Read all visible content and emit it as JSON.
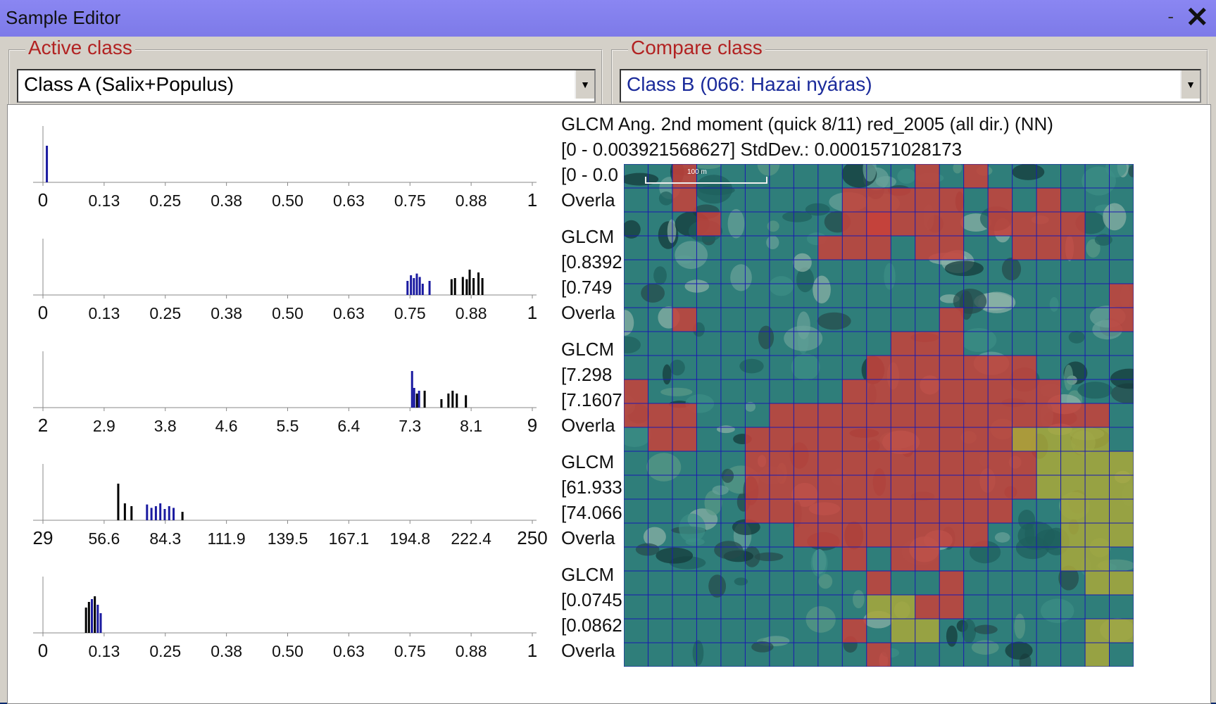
{
  "window": {
    "title": "Sample Editor",
    "minimize": "-",
    "close": "✕"
  },
  "active_class": {
    "legend": "Active class",
    "value": "Class A (Salix+Populus)",
    "color": "#000000"
  },
  "compare_class": {
    "legend": "Compare class",
    "value": "Class B (066: Hazai nyáras)",
    "color": "#1a2a9a"
  },
  "histograms": [
    {
      "ticks": [
        "0",
        "0.13",
        "0.25",
        "0.38",
        "0.50",
        "0.63",
        "0.75",
        "0.88",
        "1"
      ],
      "range": [
        0,
        1
      ],
      "bars": [
        {
          "x": 0.008,
          "h": 0.65,
          "c": "blue"
        }
      ]
    },
    {
      "ticks": [
        "0",
        "0.13",
        "0.25",
        "0.38",
        "0.50",
        "0.63",
        "0.75",
        "0.88",
        "1"
      ],
      "range": [
        0,
        1
      ],
      "bars": [
        {
          "x": 0.745,
          "h": 0.25,
          "c": "blue"
        },
        {
          "x": 0.752,
          "h": 0.35,
          "c": "blue"
        },
        {
          "x": 0.758,
          "h": 0.3,
          "c": "blue"
        },
        {
          "x": 0.764,
          "h": 0.38,
          "c": "blue"
        },
        {
          "x": 0.77,
          "h": 0.32,
          "c": "blue"
        },
        {
          "x": 0.776,
          "h": 0.2,
          "c": "blue"
        },
        {
          "x": 0.79,
          "h": 0.25,
          "c": "blue"
        },
        {
          "x": 0.835,
          "h": 0.28,
          "c": "black"
        },
        {
          "x": 0.842,
          "h": 0.3,
          "c": "black"
        },
        {
          "x": 0.858,
          "h": 0.32,
          "c": "black"
        },
        {
          "x": 0.866,
          "h": 0.28,
          "c": "black"
        },
        {
          "x": 0.872,
          "h": 0.45,
          "c": "black"
        },
        {
          "x": 0.88,
          "h": 0.3,
          "c": "black"
        },
        {
          "x": 0.89,
          "h": 0.4,
          "c": "black"
        },
        {
          "x": 0.898,
          "h": 0.3,
          "c": "black"
        }
      ]
    },
    {
      "ticks": [
        "2",
        "2.9",
        "3.8",
        "4.6",
        "5.5",
        "6.4",
        "7.3",
        "8.1",
        "9"
      ],
      "range": [
        2,
        9
      ],
      "bars": [
        {
          "x": 7.28,
          "h": 0.65,
          "c": "blue"
        },
        {
          "x": 7.31,
          "h": 0.35,
          "c": "blue"
        },
        {
          "x": 7.35,
          "h": 0.25,
          "c": "black"
        },
        {
          "x": 7.38,
          "h": 0.3,
          "c": "blue"
        },
        {
          "x": 7.46,
          "h": 0.3,
          "c": "black"
        },
        {
          "x": 7.7,
          "h": 0.15,
          "c": "black"
        },
        {
          "x": 7.8,
          "h": 0.25,
          "c": "black"
        },
        {
          "x": 7.86,
          "h": 0.3,
          "c": "black"
        },
        {
          "x": 7.92,
          "h": 0.25,
          "c": "black"
        },
        {
          "x": 8.05,
          "h": 0.22,
          "c": "black"
        }
      ]
    },
    {
      "ticks": [
        "29",
        "56.6",
        "84.3",
        "111.9",
        "139.5",
        "167.1",
        "194.8",
        "222.4",
        "250"
      ],
      "range": [
        29,
        250
      ],
      "bars": [
        {
          "x": 63,
          "h": 0.65,
          "c": "black"
        },
        {
          "x": 66,
          "h": 0.3,
          "c": "black"
        },
        {
          "x": 69,
          "h": 0.25,
          "c": "black"
        },
        {
          "x": 76,
          "h": 0.28,
          "c": "blue"
        },
        {
          "x": 78,
          "h": 0.22,
          "c": "blue"
        },
        {
          "x": 80,
          "h": 0.25,
          "c": "blue"
        },
        {
          "x": 82,
          "h": 0.3,
          "c": "blue"
        },
        {
          "x": 84,
          "h": 0.2,
          "c": "blue"
        },
        {
          "x": 86,
          "h": 0.25,
          "c": "blue"
        },
        {
          "x": 88,
          "h": 0.22,
          "c": "blue"
        },
        {
          "x": 92,
          "h": 0.15,
          "c": "black"
        }
      ]
    },
    {
      "ticks": [
        "0",
        "0.13",
        "0.25",
        "0.38",
        "0.50",
        "0.63",
        "0.75",
        "0.88",
        "1"
      ],
      "range": [
        0,
        1
      ],
      "bars": [
        {
          "x": 0.088,
          "h": 0.45,
          "c": "black"
        },
        {
          "x": 0.094,
          "h": 0.55,
          "c": "black"
        },
        {
          "x": 0.1,
          "h": 0.6,
          "c": "blue"
        },
        {
          "x": 0.106,
          "h": 0.65,
          "c": "black"
        },
        {
          "x": 0.112,
          "h": 0.5,
          "c": "blue"
        },
        {
          "x": 0.118,
          "h": 0.35,
          "c": "blue"
        }
      ]
    }
  ],
  "stats_lines": [
    "GLCM Ang. 2nd moment (quick 8/11) red_2005 (all dir.) (NN)",
    "[0 - 0.003921568627] StdDev.: 0.0001571028173",
    "[0 - 0.0",
    "Overla",
    "GLCM",
    "[0.8392",
    "[0.749",
    "Overla",
    "GLCM",
    "[7.298",
    "[7.1607",
    "Overla",
    "GLCM",
    "[61.933",
    "[74.066",
    "Overla",
    "GLCM",
    "[0.0745",
    "[0.0862",
    "Overla"
  ],
  "image": {
    "scale_label": "100 m",
    "grid_cols": 21,
    "grid_rows": 21,
    "red_cells": [
      "0,2",
      "1,2",
      "2,3",
      "0,12",
      "1,10",
      "2,10",
      "3,10",
      "0,14",
      "1,9",
      "1,11",
      "1,12",
      "1,13",
      "1,15",
      "1,17",
      "2,9",
      "2,10",
      "2,11",
      "2,12",
      "2,13",
      "2,15",
      "2,16",
      "2,17",
      "2,18",
      "3,8",
      "3,9",
      "3,12",
      "3,13",
      "3,16",
      "3,17",
      "3,18",
      "5,20",
      "6,20",
      "6,2",
      "6,13",
      "7,11",
      "7,12",
      "7,13",
      "8,10",
      "8,11",
      "8,12",
      "8,13",
      "8,14",
      "8,15",
      "8,16",
      "9,9",
      "9,10",
      "9,11",
      "9,12",
      "9,13",
      "9,14",
      "9,15",
      "9,16",
      "9,17",
      "10,6",
      "10,7",
      "10,8",
      "10,9",
      "10,10",
      "10,11",
      "10,12",
      "10,13",
      "10,14",
      "10,15",
      "10,16",
      "10,17",
      "10,18",
      "10,19",
      "9,0",
      "10,0",
      "10,1",
      "10,2",
      "11,1",
      "11,2",
      "11,5",
      "11,6",
      "11,7",
      "11,8",
      "11,9",
      "11,10",
      "11,11",
      "11,12",
      "11,13",
      "11,14",
      "11,15",
      "11,16",
      "12,5",
      "12,6",
      "12,7",
      "12,8",
      "12,9",
      "12,10",
      "12,11",
      "12,12",
      "12,13",
      "12,14",
      "12,15",
      "12,16",
      "13,5",
      "13,6",
      "13,7",
      "13,8",
      "13,9",
      "13,10",
      "13,11",
      "13,12",
      "13,13",
      "13,14",
      "13,15",
      "13,16",
      "14,5",
      "14,6",
      "14,7",
      "14,8",
      "14,9",
      "14,10",
      "14,11",
      "14,12",
      "14,13",
      "14,14",
      "14,15",
      "15,7",
      "15,8",
      "15,9",
      "15,10",
      "15,11",
      "15,12",
      "15,13",
      "15,14",
      "16,9",
      "16,11",
      "16,12",
      "17,10",
      "18,12",
      "18,13",
      "19,9",
      "20,10",
      "17,13"
    ],
    "yellow_cells": [
      "11,16",
      "11,17",
      "11,18",
      "11,19",
      "12,17",
      "12,18",
      "12,19",
      "12,20",
      "13,17",
      "13,18",
      "13,19",
      "13,20",
      "14,18",
      "14,19",
      "14,20",
      "15,18",
      "15,19",
      "15,20",
      "16,18",
      "16,19",
      "17,19",
      "17,20",
      "18,10",
      "18,11",
      "19,11",
      "19,12",
      "19,19",
      "19,20",
      "20,19"
    ]
  }
}
